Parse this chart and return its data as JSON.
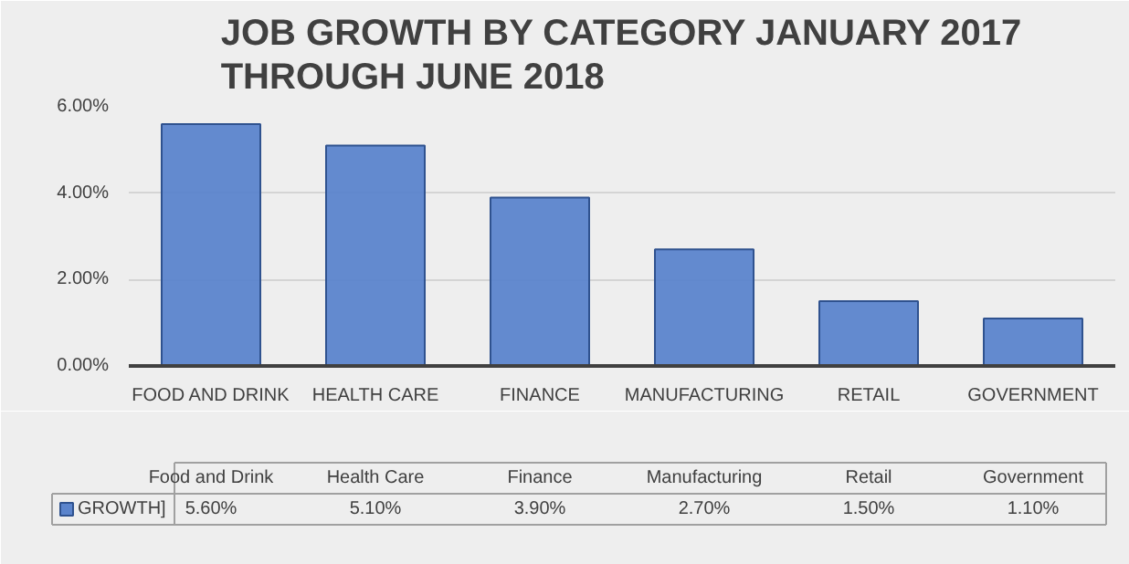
{
  "chart_data": {
    "type": "bar",
    "title": "JOB GROWTH BY CATEGORY JANUARY 2017\nTHROUGH JUNE 2018",
    "categories": [
      "FOOD AND DRINK",
      "HEALTH CARE",
      "FINANCE",
      "MANUFACTURING",
      "RETAIL",
      "GOVERNMENT"
    ],
    "series": [
      {
        "name": "GROWTH]",
        "color": "#5b84cc",
        "values": [
          5.6,
          5.1,
          3.9,
          2.7,
          1.5,
          1.1
        ],
        "value_labels": [
          "5.60%",
          "5.10%",
          "3.90%",
          "2.70%",
          "1.50%",
          "1.10%"
        ]
      }
    ],
    "annotations": [
      "Food and Drink",
      "Health Care",
      "Finance",
      "Manufacturing",
      "Retail",
      "Government"
    ],
    "ylim": [
      0,
      6
    ],
    "yticks": [
      {
        "value": 0,
        "label": "0.00%"
      },
      {
        "value": 2,
        "label": "2.00%"
      },
      {
        "value": 4,
        "label": "4.00%"
      },
      {
        "value": 6,
        "label": "6.00%"
      }
    ],
    "grid": "y",
    "legend": "bottom"
  }
}
